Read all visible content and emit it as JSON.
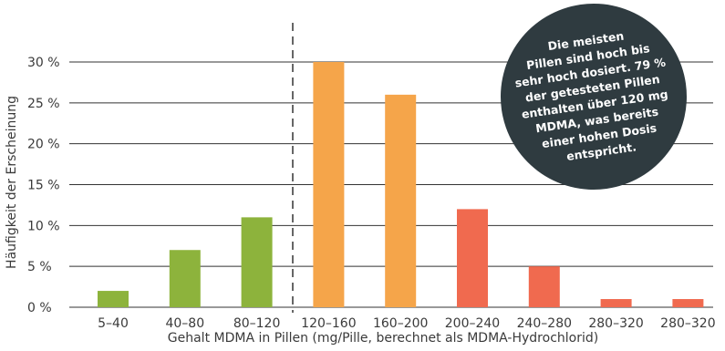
{
  "chart_data": {
    "type": "bar",
    "xlabel": "Gehalt MDMA in Pillen (mg/Pille, berechnet als MDMA-Hydrochlorid)",
    "ylabel": "Häufigkeit der Erscheinung",
    "ylim": [
      0,
      30
    ],
    "y_ticks": [
      "0 %",
      "5 %",
      "10 %",
      "15 %",
      "20 %",
      "25 %",
      "30 %"
    ],
    "grid": true,
    "categories": [
      "5–40",
      "40–80",
      "80–120",
      "120–160",
      "160–200",
      "200–240",
      "240–280",
      "280–320",
      "280–320"
    ],
    "values": [
      2,
      7,
      11,
      30,
      26,
      12,
      5,
      1,
      1
    ],
    "bar_colors": [
      "#8db33c",
      "#8db33c",
      "#8db33c",
      "#f5a54a",
      "#f5a54a",
      "#f06a4f",
      "#f06a4f",
      "#f06a4f",
      "#f06a4f"
    ],
    "divider_after_category": 2,
    "annotation": {
      "lines": [
        "Die meisten",
        "Pillen sind hoch bis",
        "sehr hoch dosiert. 79 %",
        "der getesteten Pillen",
        "enthalten über 120 mg",
        "MDMA, was bereits",
        "einer hohen Dosis",
        "entspricht."
      ],
      "background": "#2f3b40"
    }
  }
}
